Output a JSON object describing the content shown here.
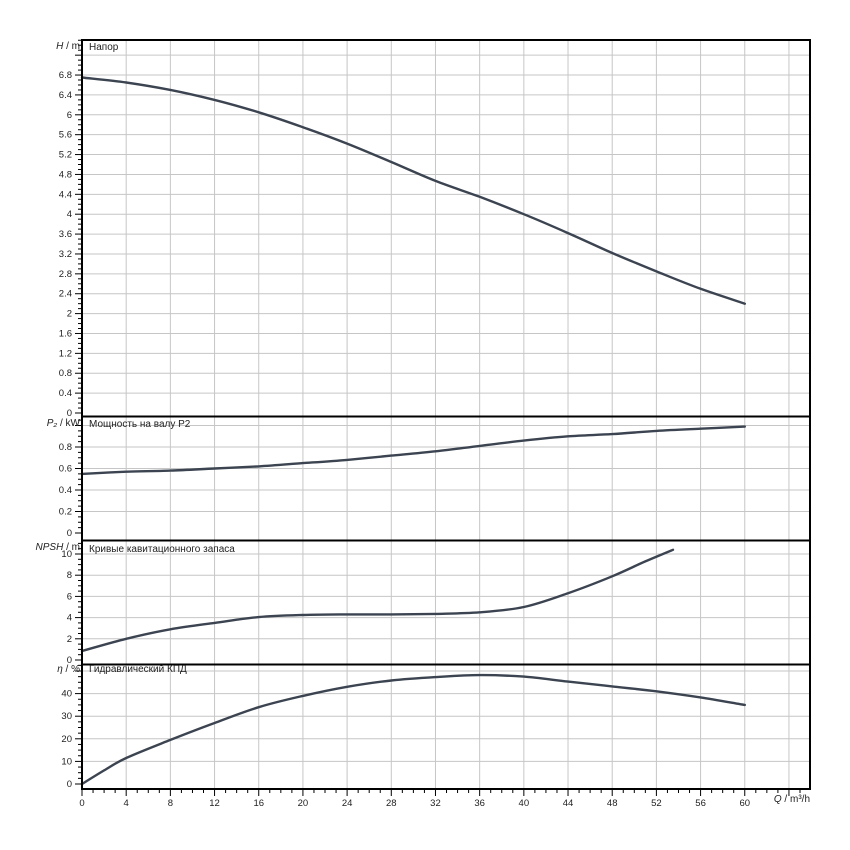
{
  "colors": {
    "background": "#ffffff",
    "curve": "#3b4450",
    "grid": "#c6c6c6",
    "axis": "#000000",
    "text": "#222222"
  },
  "x_axis": {
    "label_var": "Q",
    "label_sep": " / ",
    "label_unit": "m³/h",
    "ticks": [
      "0",
      "4",
      "8",
      "12",
      "16",
      "20",
      "24",
      "28",
      "32",
      "36",
      "40",
      "44",
      "48",
      "52",
      "56",
      "60"
    ]
  },
  "panels": [
    {
      "title": "Напор",
      "axis_var": "H",
      "sep": " / ",
      "unit": "m",
      "y_ticks": [
        "0",
        "0.4",
        "0.8",
        "1.2",
        "1.6",
        "2",
        "2.4",
        "2.8",
        "3.2",
        "3.6",
        "4",
        "4.4",
        "4.8",
        "5.2",
        "5.6",
        "6",
        "6.4",
        "6.8"
      ]
    },
    {
      "title": "Мощность на валу P2",
      "axis_var": "P₂",
      "sep": " / ",
      "unit": "kW",
      "y_ticks": [
        "0",
        "0.2",
        "0.4",
        "0.6",
        "0.8"
      ]
    },
    {
      "title": "Кривые кавитационного запаса",
      "axis_var": "NPSH",
      "sep": " / ",
      "unit": "m",
      "y_ticks": [
        "0",
        "2",
        "4",
        "6",
        "8",
        "10"
      ]
    },
    {
      "title": "Гидравлический КПД",
      "axis_var": "η",
      "sep": " / ",
      "unit": "%",
      "y_ticks": [
        "0",
        "10",
        "20",
        "30",
        "40"
      ]
    }
  ],
  "chart_data": [
    {
      "type": "line",
      "title": "Напор",
      "xlabel": "Q / m³/h",
      "ylabel": "H / m",
      "xlim": [
        0,
        65.9
      ],
      "ylim": [
        0,
        7.5
      ],
      "grid": true,
      "x": [
        0,
        4,
        8,
        12,
        16,
        20,
        24,
        28,
        32,
        36,
        40,
        44,
        48,
        52,
        56,
        60
      ],
      "y": [
        6.75,
        6.65,
        6.5,
        6.3,
        6.05,
        5.75,
        5.42,
        5.05,
        4.67,
        4.35,
        4.0,
        3.62,
        3.22,
        2.85,
        2.5,
        2.2
      ]
    },
    {
      "type": "line",
      "title": "Мощность на валу P2",
      "xlabel": "Q / m³/h",
      "ylabel": "P₂ / kW",
      "xlim": [
        0,
        65.9
      ],
      "ylim": [
        0,
        1.08
      ],
      "grid": true,
      "x": [
        0,
        4,
        8,
        12,
        16,
        20,
        24,
        28,
        32,
        36,
        40,
        44,
        48,
        52,
        56,
        60
      ],
      "y": [
        0.55,
        0.57,
        0.58,
        0.6,
        0.62,
        0.65,
        0.68,
        0.72,
        0.76,
        0.81,
        0.86,
        0.9,
        0.92,
        0.95,
        0.97,
        0.99
      ]
    },
    {
      "type": "line",
      "title": "Кривые кавитационного запаса",
      "xlabel": "Q / m³/h",
      "ylabel": "NPSH / m",
      "xlim": [
        0,
        65.9
      ],
      "ylim": [
        0,
        11.2
      ],
      "grid": true,
      "x": [
        0,
        4,
        8,
        12,
        16,
        20,
        24,
        28,
        32,
        36,
        40,
        44,
        48,
        51,
        53.5
      ],
      "y": [
        0.85,
        2.0,
        2.9,
        3.5,
        4.05,
        4.25,
        4.3,
        4.3,
        4.35,
        4.5,
        5.0,
        6.3,
        7.9,
        9.3,
        10.4
      ]
    },
    {
      "type": "line",
      "title": "Гидравлический КПД",
      "xlabel": "Q / m³/h",
      "ylabel": "η / %",
      "xlim": [
        0,
        65.9
      ],
      "ylim": [
        0,
        52.7
      ],
      "grid": true,
      "x": [
        0,
        2,
        4,
        8,
        12,
        16,
        20,
        24,
        28,
        32,
        36,
        40,
        44,
        48,
        52,
        56,
        60
      ],
      "y": [
        0,
        6,
        11.5,
        19.5,
        27,
        34,
        39,
        43,
        45.8,
        47.3,
        48.2,
        47.5,
        45.3,
        43.2,
        41,
        38.3,
        35
      ]
    }
  ]
}
